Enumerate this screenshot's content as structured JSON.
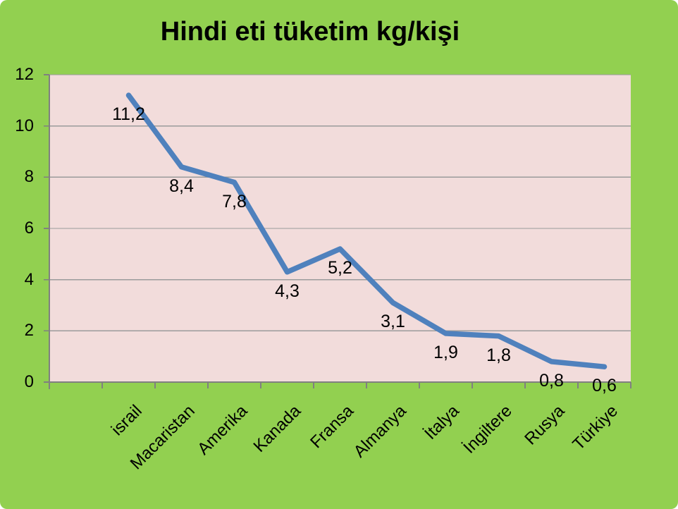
{
  "chart_data": {
    "type": "line",
    "title": "Hindi eti tüketim kg/kişi",
    "categories": [
      "israil",
      "Macaristan",
      "Amerika",
      "Kanada",
      "Fransa",
      "Almanya",
      "İtalya",
      "İngiltere",
      "Rusya",
      "Türkiye"
    ],
    "values": [
      11.2,
      8.4,
      7.8,
      4.3,
      5.2,
      3.1,
      1.9,
      1.8,
      0.8,
      0.6
    ],
    "value_labels": [
      "11,2",
      "8,4",
      "7,8",
      "4,3",
      "5,2",
      "3,1",
      "1,9",
      "1,8",
      "0,8",
      "0,6"
    ],
    "xlabel": "",
    "ylabel": "",
    "ylim": [
      0,
      12
    ],
    "ytick_step": 2,
    "ytick_labels": [
      "0",
      "2",
      "4",
      "6",
      "8",
      "10",
      "12"
    ],
    "grid": true,
    "legend": "none",
    "data_label_position": "below",
    "colors": {
      "chart_background": "#92D050",
      "plot_background": "#F2DCDB",
      "line": "#4F81BD",
      "gridline": "#9B9B9B",
      "axis": "#808080",
      "text": "#000000"
    }
  }
}
